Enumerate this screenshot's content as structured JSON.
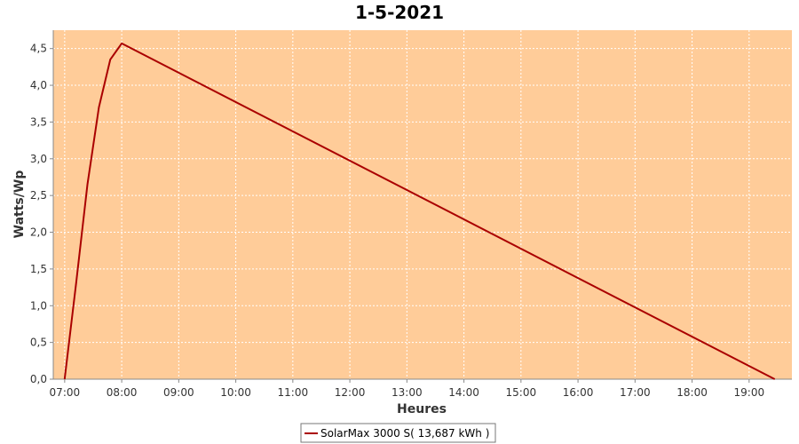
{
  "chart_data": {
    "type": "line",
    "title": "1-5-2021",
    "xlabel": "Heures",
    "ylabel": "Watts/Wp",
    "xlim": [
      6.8,
      19.75
    ],
    "ylim": [
      0,
      4.75
    ],
    "x_ticks": [
      {
        "value": 7,
        "label": "07:00"
      },
      {
        "value": 8,
        "label": "08:00"
      },
      {
        "value": 9,
        "label": "09:00"
      },
      {
        "value": 10,
        "label": "10:00"
      },
      {
        "value": 11,
        "label": "11:00"
      },
      {
        "value": 12,
        "label": "12:00"
      },
      {
        "value": 13,
        "label": "13:00"
      },
      {
        "value": 14,
        "label": "14:00"
      },
      {
        "value": 15,
        "label": "15:00"
      },
      {
        "value": 16,
        "label": "16:00"
      },
      {
        "value": 17,
        "label": "17:00"
      },
      {
        "value": 18,
        "label": "18:00"
      },
      {
        "value": 19,
        "label": "19:00"
      }
    ],
    "y_ticks": [
      {
        "value": 0,
        "label": "0,0"
      },
      {
        "value": 0.5,
        "label": "0,5"
      },
      {
        "value": 1,
        "label": "1,0"
      },
      {
        "value": 1.5,
        "label": "1,5"
      },
      {
        "value": 2,
        "label": "2,0"
      },
      {
        "value": 2.5,
        "label": "2,5"
      },
      {
        "value": 3,
        "label": "3,0"
      },
      {
        "value": 3.5,
        "label": "3,5"
      },
      {
        "value": 4,
        "label": "4,0"
      },
      {
        "value": 4.5,
        "label": "4,5"
      }
    ],
    "grid": true,
    "legend_position": "bottom",
    "plot_background": "#FFCC99",
    "series": [
      {
        "name": "SolarMax 3000 S( 13,687 kWh )",
        "color": "#AA0000",
        "x": [
          7.0,
          7.2,
          7.4,
          7.6,
          7.8,
          8.0,
          19.45
        ],
        "y": [
          0.0,
          1.3,
          2.65,
          3.7,
          4.35,
          4.57,
          0.0
        ]
      }
    ]
  }
}
